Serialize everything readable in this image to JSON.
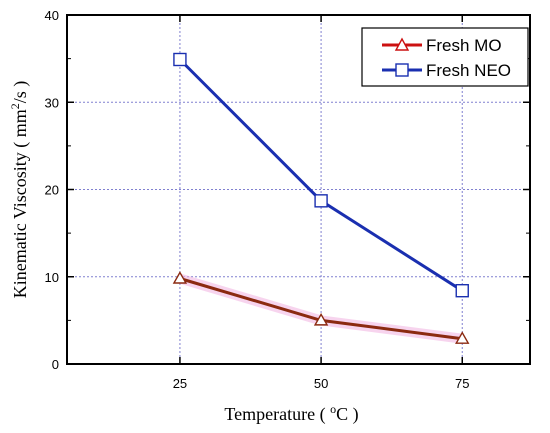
{
  "chart_data": {
    "type": "line",
    "x": [
      25,
      50,
      75
    ],
    "xticks": [
      "25",
      "50",
      "75"
    ],
    "xlim": [
      5,
      87
    ],
    "ylim": [
      0,
      40
    ],
    "yticks": [
      "0",
      "10",
      "20",
      "30",
      "40"
    ],
    "xlabel_main": "Temperature ( ",
    "xlabel_sup": "o",
    "xlabel_tail": "C )",
    "ylabel_main": "Kinematic Viscosity ( mm",
    "ylabel_sup": "2",
    "ylabel_tail": "/s )",
    "grid": true,
    "legend_position": "top-right",
    "series": [
      {
        "name": "Fresh MO",
        "values": [
          9.8,
          5.0,
          2.9
        ],
        "color": "#cc1111",
        "marker": "triangle",
        "marker_color": "#8b2a10"
      },
      {
        "name": "Fresh NEO",
        "values": [
          34.9,
          18.7,
          8.4
        ],
        "color": "#1a2fb0",
        "marker": "square",
        "marker_color": "#1a2fb0"
      }
    ]
  }
}
